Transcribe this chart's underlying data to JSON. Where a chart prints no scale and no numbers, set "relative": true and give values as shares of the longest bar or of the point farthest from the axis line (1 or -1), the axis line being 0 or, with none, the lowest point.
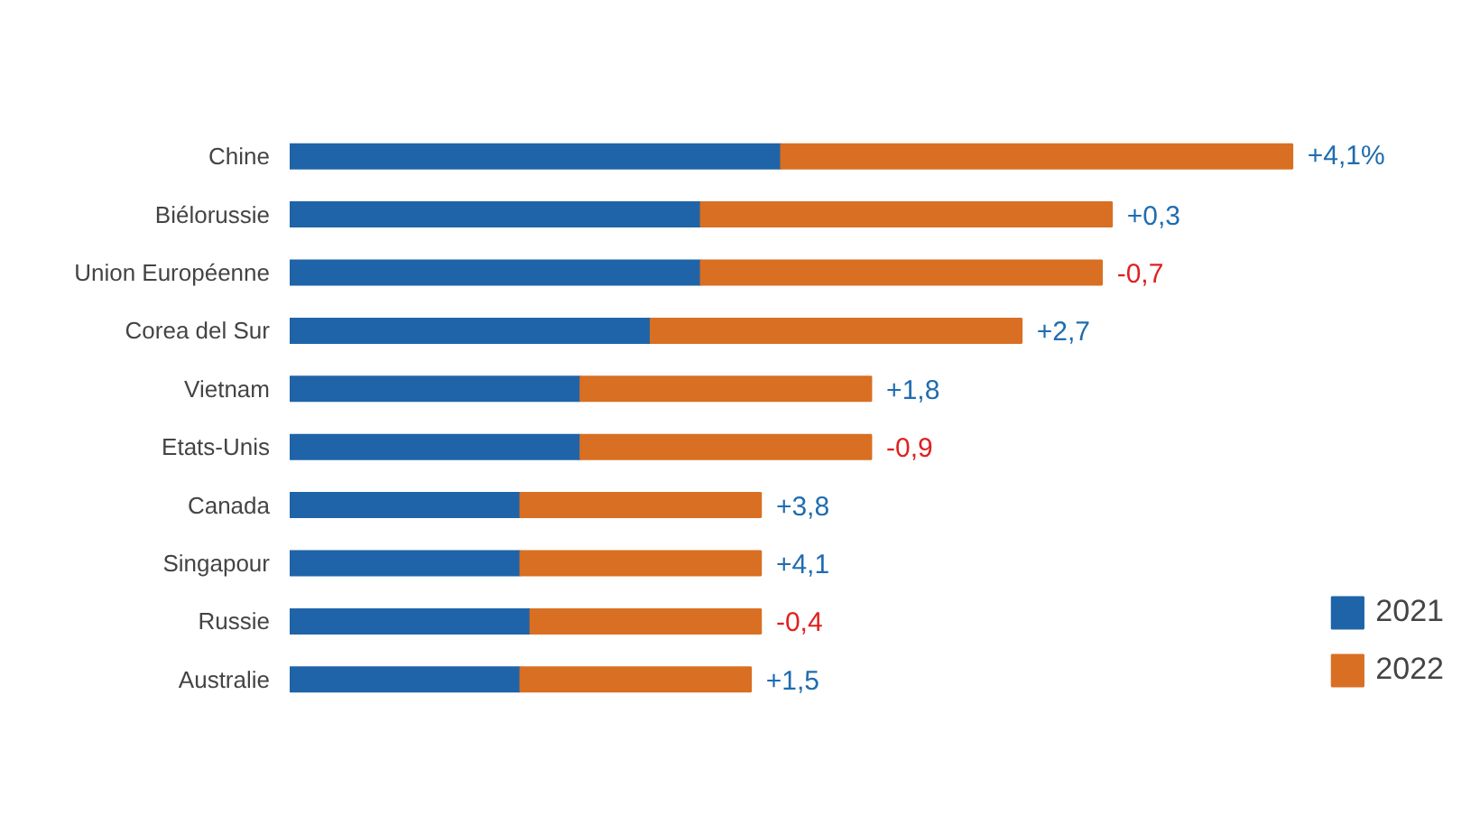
{
  "chart_data": {
    "type": "bar",
    "orientation": "horizontal",
    "stacked": true,
    "relative": true,
    "legend": "bottom right",
    "grid": false,
    "categories": [
      "Chine",
      "Biélorussie",
      "Union Européenne",
      "Corea del Sur",
      "Vietnam",
      "Etats-Unis",
      "Canada",
      "Singapour",
      "Russie",
      "Australie"
    ],
    "series": [
      {
        "name": "2021",
        "color": "#1f64a8",
        "values": [
          0.49,
          0.41,
          0.41,
          0.36,
          0.29,
          0.29,
          0.23,
          0.23,
          0.24,
          0.23
        ]
      },
      {
        "name": "2022",
        "color": "#d96f22",
        "values": [
          0.51,
          0.41,
          0.4,
          0.37,
          0.29,
          0.29,
          0.24,
          0.24,
          0.23,
          0.23
        ]
      }
    ],
    "annotations": [
      "+4,1%",
      "+0,3",
      "-0,7",
      "+2,7",
      "+1,8",
      "-0,9",
      "+3,8",
      "+4,1",
      "-0,4",
      "+1,5"
    ]
  }
}
